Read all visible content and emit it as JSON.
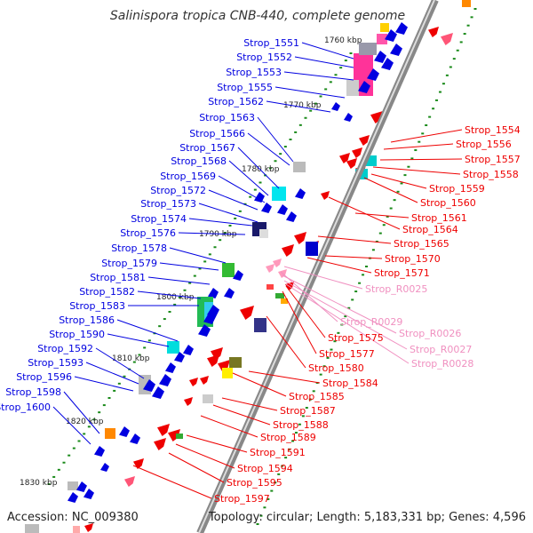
{
  "header": {
    "title": "Salinispora tropica CNB-440, complete genome"
  },
  "footer": {
    "accession": "Accession: NC_009380",
    "summary": "Topology: circular; Length: 5,183,331 bp; Genes: 4,596"
  },
  "colors": {
    "plus_strand": "#0000e0",
    "minus_strand": "#ee0000",
    "rna": "#f090c0",
    "backbone": "#888888"
  },
  "scale": {
    "marks": [
      "1760 kbp",
      "1770 kbp",
      "1780 kbp",
      "1790 kbp",
      "1800 kbp",
      "1810 kbp",
      "1820 kbp",
      "1830 kbp"
    ]
  },
  "genes": {
    "left": [
      "Strop_1551",
      "Strop_1552",
      "Strop_1553",
      "Strop_1555",
      "Strop_1562",
      "Strop_1563",
      "Strop_1566",
      "Strop_1567",
      "Strop_1568",
      "Strop_1569",
      "Strop_1572",
      "Strop_1573",
      "Strop_1574",
      "Strop_1576",
      "Strop_1578",
      "Strop_1579",
      "Strop_1581",
      "Strop_1582",
      "Strop_1583",
      "Strop_1586",
      "Strop_1590",
      "Strop_1592",
      "Strop_1593",
      "Strop_1596",
      "Strop_1598",
      "Strop_1600"
    ],
    "right": [
      "Strop_1554",
      "Strop_1556",
      "Strop_1557",
      "Strop_1558",
      "Strop_1559",
      "Strop_1560",
      "Strop_1561",
      "Strop_1564",
      "Strop_1565",
      "Strop_1570",
      "Strop_1571",
      "Strop_1575",
      "Strop_1577",
      "Strop_1580",
      "Strop_1584",
      "Strop_1585",
      "Strop_1587",
      "Strop_1588",
      "Strop_1589",
      "Strop_1591",
      "Strop_1594",
      "Strop_1595",
      "Strop_1597"
    ],
    "rna": [
      "Strop_R0025",
      "Strop_R0029",
      "Strop_R0026",
      "Strop_R0027",
      "Strop_R0028"
    ]
  }
}
